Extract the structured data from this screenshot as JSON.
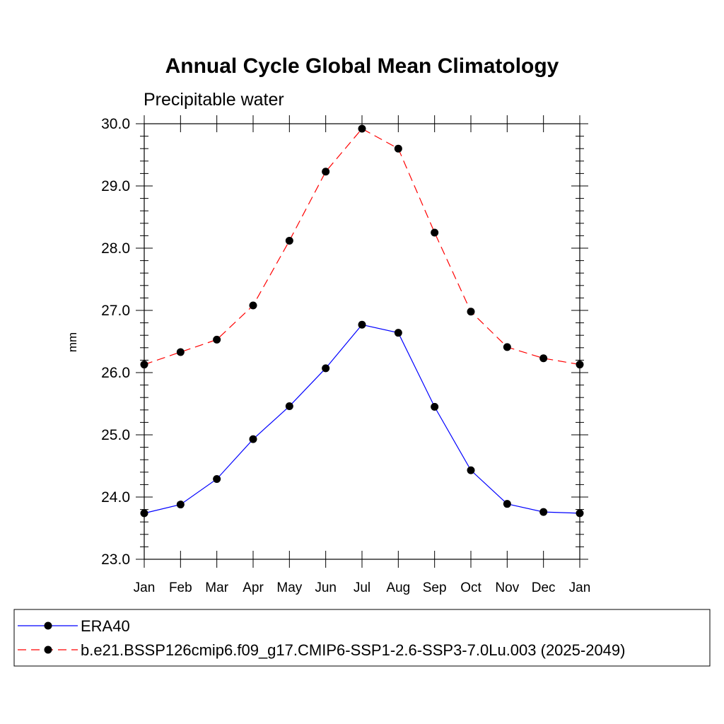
{
  "chart_data": {
    "type": "line",
    "title": "Annual Cycle Global Mean Climatology",
    "subtitle": "Precipitable water",
    "ylabel": "mm",
    "xlabel": "",
    "categories": [
      "Jan",
      "Feb",
      "Mar",
      "Apr",
      "May",
      "Jun",
      "Jul",
      "Aug",
      "Sep",
      "Oct",
      "Nov",
      "Dec",
      "Jan"
    ],
    "ylim": [
      23.0,
      30.0
    ],
    "yticks": [
      "23.0",
      "24.0",
      "25.0",
      "26.0",
      "27.0",
      "28.0",
      "29.0",
      "30.0"
    ],
    "grid": false,
    "legend_position": "bottom",
    "series": [
      {
        "name": "ERA40",
        "color": "#0000ff",
        "dash": "solid",
        "marker": "filled-circle",
        "values": [
          23.74,
          23.88,
          24.29,
          24.93,
          25.46,
          26.07,
          26.77,
          26.64,
          25.45,
          24.43,
          23.89,
          23.76,
          23.74
        ]
      },
      {
        "name": "b.e21.BSSP126cmip6.f09_g17.CMIP6-SSP1-2.6-SSP3-7.0Lu.003 (2025-2049)",
        "color": "#ff0000",
        "dash": "dashed",
        "marker": "filled-circle",
        "values": [
          26.13,
          26.33,
          26.53,
          27.08,
          28.12,
          29.23,
          29.92,
          29.6,
          28.25,
          26.98,
          26.41,
          26.23,
          26.13
        ]
      }
    ]
  }
}
